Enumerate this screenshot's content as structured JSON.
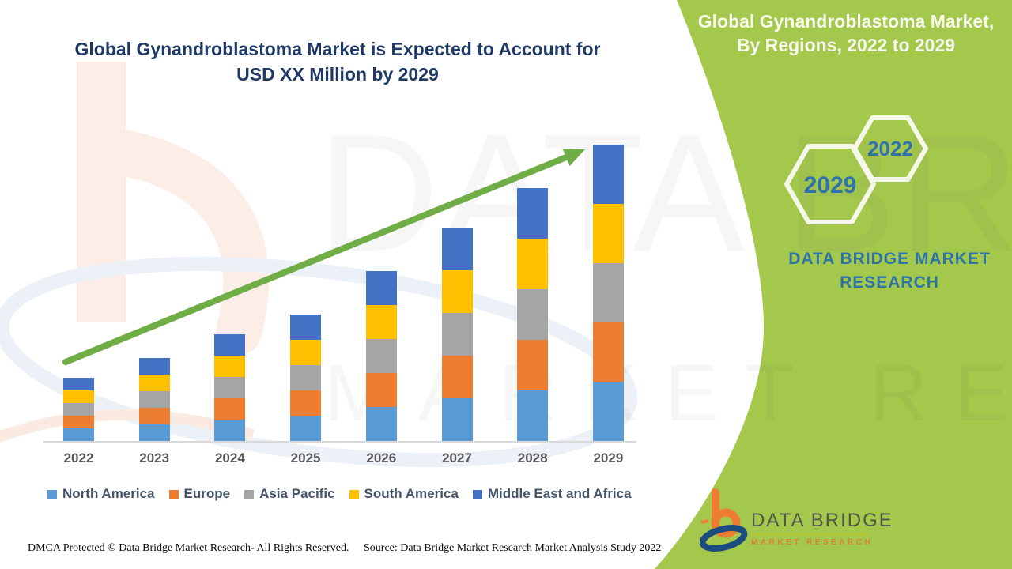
{
  "colors": {
    "panel_green": "#A4C84C",
    "title_navy": "#1F3864",
    "panel_text_blue": "#2E74A8",
    "axis_gray": "#D9D9D9",
    "year_label_gray": "#595959",
    "legend_text": "#44546A",
    "arrow_green": "#70AD47"
  },
  "main_title": {
    "line1": "Global Gynandroblastoma Market is Expected to Account for",
    "line2": "USD XX Million by 2029"
  },
  "side_panel": {
    "title_line1": "Global Gynandroblastoma Market,",
    "title_line2": "By Regions, 2022 to 2029",
    "hexagons": [
      {
        "label": "2029"
      },
      {
        "label": "2022"
      }
    ],
    "brand_line1": "DATA BRIDGE MARKET",
    "brand_line2": "RESEARCH"
  },
  "chart_data": {
    "type": "bar",
    "stacked": true,
    "title": "Global Gynandroblastoma Market is Expected to Account for USD XX Million by 2029",
    "xlabel": "",
    "ylabel": "",
    "value_axis_labels_visible": false,
    "grid": false,
    "legend_position": "bottom",
    "categories": [
      "2022",
      "2023",
      "2024",
      "2025",
      "2026",
      "2027",
      "2028",
      "2029"
    ],
    "series": [
      {
        "name": "North America",
        "color": "#5B9BD5",
        "values": [
          0.3,
          0.4,
          0.5,
          0.6,
          0.8,
          1.0,
          1.2,
          1.4
        ]
      },
      {
        "name": "Europe",
        "color": "#ED7D31",
        "values": [
          0.3,
          0.4,
          0.5,
          0.6,
          0.8,
          1.0,
          1.2,
          1.4
        ]
      },
      {
        "name": "Asia Pacific",
        "color": "#A5A5A5",
        "values": [
          0.3,
          0.4,
          0.5,
          0.6,
          0.8,
          1.0,
          1.2,
          1.4
        ]
      },
      {
        "name": "South America",
        "color": "#FFC000",
        "values": [
          0.3,
          0.4,
          0.5,
          0.6,
          0.8,
          1.0,
          1.2,
          1.4
        ]
      },
      {
        "name": "Middle East and Africa",
        "color": "#4472C4",
        "values": [
          0.3,
          0.4,
          0.5,
          0.6,
          0.8,
          1.0,
          1.2,
          1.4
        ]
      }
    ],
    "stack_totals": [
      1.5,
      2.0,
      2.5,
      3.0,
      4.0,
      5.0,
      6.0,
      7.0
    ],
    "note": "No numeric value axis shown; values are relative units estimated from bar heights (equal regional split each year).",
    "trend_arrow": {
      "present": true,
      "color": "#70AD47",
      "from_category": "2022",
      "to_category": "2029"
    }
  },
  "watermark": {
    "line1": "DATA BRIDGE",
    "line2": "MARKET RESEARCH"
  },
  "footer": {
    "dmca": "DMCA Protected © Data Bridge Market Research- All Rights Reserved.",
    "source": "Source: Data Bridge Market Research Market Analysis Study 2022",
    "logo": {
      "title": "DATA BRIDGE",
      "subtitle": "MARKET RESEARCH"
    }
  }
}
